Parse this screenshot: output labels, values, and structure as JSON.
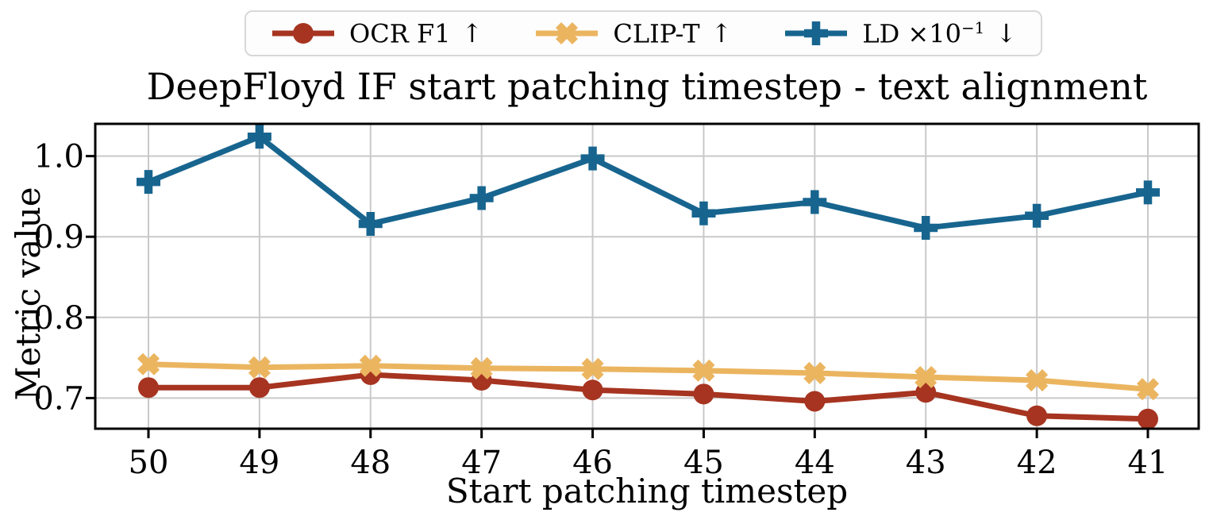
{
  "colors": {
    "background": "#ffffff",
    "grid": "#c9c9c9",
    "spine": "#000000",
    "text": "#000000",
    "legend_border": "#d8d8d8",
    "legend_bg": "#fdfdfd",
    "ocr_f1": "#A63420",
    "clip_t": "#EBB560",
    "ld": "#17658F"
  },
  "chart_data": {
    "type": "line",
    "title": "DeepFloyd IF start patching timestep - text alignment",
    "xlabel": "Start patching timestep",
    "ylabel": "Metric value",
    "categories": [
      "50",
      "49",
      "48",
      "47",
      "46",
      "45",
      "44",
      "43",
      "42",
      "41"
    ],
    "x_values": [
      50,
      49,
      48,
      47,
      46,
      45,
      44,
      43,
      42,
      41
    ],
    "x_axis_inverted": true,
    "yticks": [
      0.7,
      0.8,
      0.9,
      1.0
    ],
    "ytick_labels": [
      "0.7",
      "0.8",
      "0.9",
      "1.0"
    ],
    "ylim": [
      0.662,
      1.04
    ],
    "grid": true,
    "legend_position": "top-center-outside",
    "series": [
      {
        "id": "ocr-f1",
        "name": "OCR F1",
        "name_sup": "",
        "arrow": "↑",
        "marker": "circle",
        "color": "#A63420",
        "values": [
          0.713,
          0.713,
          0.729,
          0.722,
          0.71,
          0.705,
          0.696,
          0.707,
          0.678,
          0.674
        ]
      },
      {
        "id": "clip-t",
        "name": "CLIP-T",
        "name_sup": "",
        "arrow": "↑",
        "marker": "x",
        "color": "#EBB560",
        "values": [
          0.742,
          0.738,
          0.74,
          0.737,
          0.736,
          0.734,
          0.731,
          0.726,
          0.722,
          0.711
        ]
      },
      {
        "id": "ld",
        "name": "LD ×10",
        "name_sup": "−1",
        "arrow": "↓",
        "marker": "plus",
        "color": "#17658F",
        "values": [
          0.968,
          1.024,
          0.916,
          0.948,
          0.997,
          0.929,
          0.943,
          0.911,
          0.926,
          0.955
        ]
      }
    ]
  }
}
